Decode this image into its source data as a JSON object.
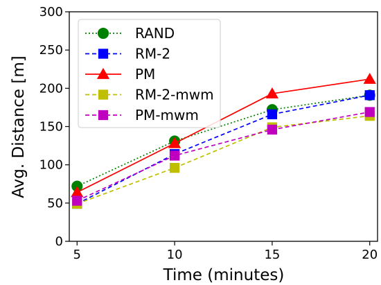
{
  "chart_data": {
    "type": "line",
    "xlabel": "Time (minutes)",
    "ylabel": "Avg. Distance [m]",
    "x": [
      5,
      10,
      15,
      20
    ],
    "xticks": [
      "5",
      "10",
      "15",
      "20"
    ],
    "yticks": [
      "0",
      "50",
      "100",
      "150",
      "200",
      "250",
      "300"
    ],
    "xlim": [
      4.6,
      20.4
    ],
    "ylim": [
      0,
      300
    ],
    "grid": false,
    "legend_position": "top-left",
    "series": [
      {
        "name": "RAND",
        "values": [
          72,
          131,
          172,
          191
        ],
        "color": "#008000",
        "marker": "circle",
        "linestyle": "dotted"
      },
      {
        "name": "RM-2",
        "values": [
          49,
          114,
          166,
          191
        ],
        "color": "#0000ff",
        "marker": "square",
        "linestyle": "dashed"
      },
      {
        "name": "PM",
        "values": [
          64,
          128,
          193,
          212
        ],
        "color": "#ff0000",
        "marker": "triangle",
        "linestyle": "solid"
      },
      {
        "name": "RM-2-mwm",
        "values": [
          49,
          96,
          149,
          164
        ],
        "color": "#bfbf00",
        "marker": "square",
        "linestyle": "dashed"
      },
      {
        "name": "PM-mwm",
        "values": [
          53,
          112,
          146,
          169
        ],
        "color": "#bf00bf",
        "marker": "square",
        "linestyle": "dashed"
      }
    ]
  }
}
